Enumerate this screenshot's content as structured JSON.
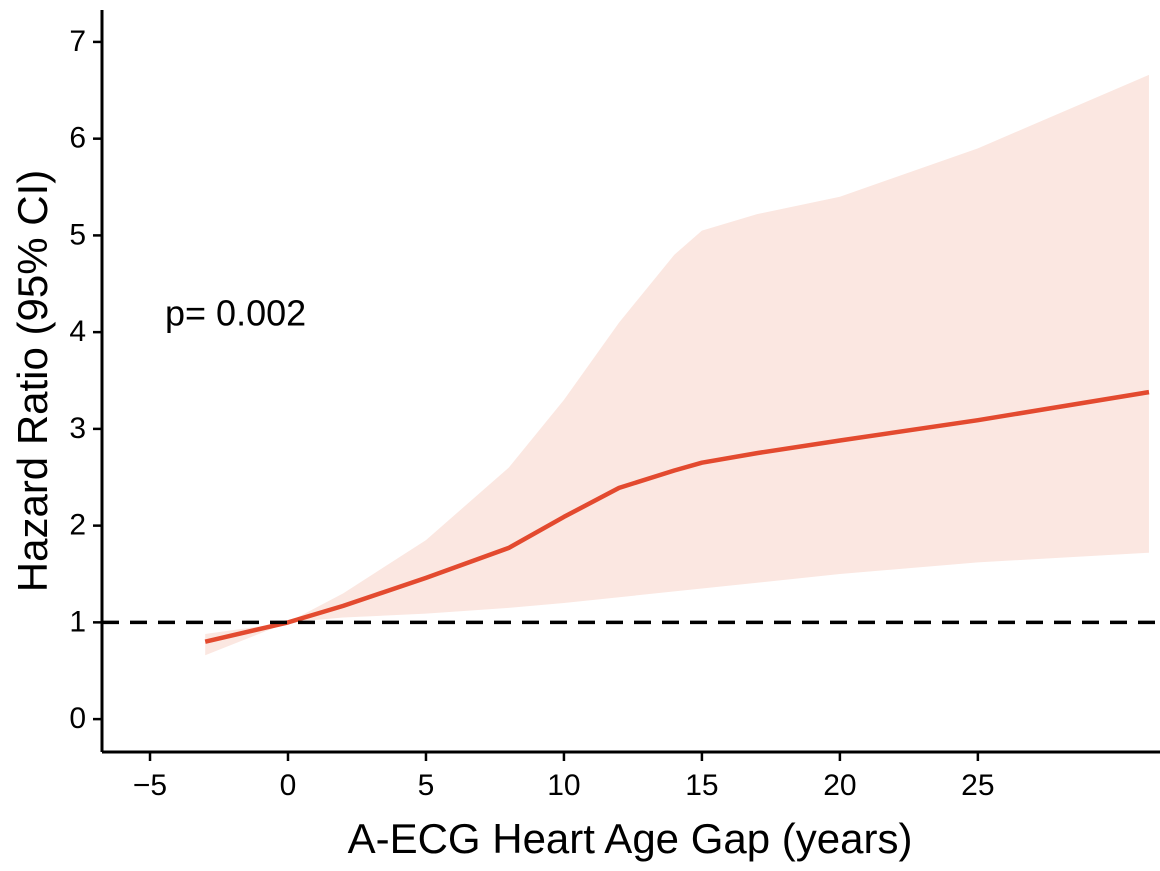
{
  "chart_data": {
    "type": "line",
    "x_label": "A-ECG Heart Age Gap (years)",
    "y_label": "Hazard Ratio (95% CI)",
    "annotation": "p= 0.002",
    "reference_line": 1,
    "xlim": [
      -6.74,
      31.6
    ],
    "ylim": [
      -0.34,
      7.33
    ],
    "xticks": [
      {
        "value": -5,
        "label": "−5"
      },
      0,
      5,
      10,
      15,
      20,
      25
    ],
    "yticks": [
      0,
      1,
      2,
      3,
      4,
      5,
      6,
      7
    ],
    "series": [
      {
        "color": "#e34a2f",
        "band_color": "#fbe7e1",
        "x": [
          -3,
          0,
          2,
          5,
          8,
          10,
          12,
          14,
          15,
          17,
          20,
          25,
          31.2
        ],
        "values": [
          0.8,
          1.0,
          1.17,
          1.46,
          1.77,
          2.09,
          2.39,
          2.57,
          2.65,
          2.75,
          2.88,
          3.09,
          3.38
        ],
        "lower": [
          0.66,
          1.0,
          1.05,
          1.09,
          1.15,
          1.2,
          1.26,
          1.32,
          1.35,
          1.41,
          1.5,
          1.62,
          1.72
        ],
        "upper": [
          0.88,
          1.0,
          1.3,
          1.85,
          2.6,
          3.3,
          4.1,
          4.8,
          5.05,
          5.22,
          5.4,
          5.9,
          6.66
        ]
      }
    ]
  }
}
